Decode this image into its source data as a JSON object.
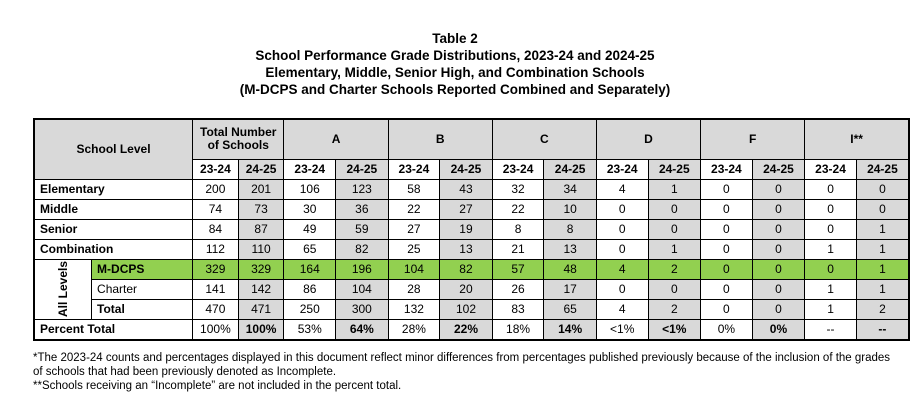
{
  "title": {
    "line1": "Table 2",
    "line2": "School Performance Grade Distributions, 2023-24 and 2024-25",
    "line3": "Elementary, Middle, Senior High, and Combination Schools",
    "line4": "(M-DCPS and Charter Schools Reported Combined and Separately)"
  },
  "headers": {
    "school_level": "School Level",
    "total_schools": "Total Number of Schools",
    "grades": [
      "A",
      "B",
      "C",
      "D",
      "F",
      "I**"
    ],
    "years": [
      "23-24",
      "24-25"
    ]
  },
  "rows": [
    {
      "label": "Elementary",
      "values": [
        "200",
        "201",
        "106",
        "123",
        "58",
        "43",
        "32",
        "34",
        "4",
        "1",
        "0",
        "0",
        "0",
        "0"
      ]
    },
    {
      "label": "Middle",
      "values": [
        "74",
        "73",
        "30",
        "36",
        "22",
        "27",
        "22",
        "10",
        "0",
        "0",
        "0",
        "0",
        "0",
        "0"
      ]
    },
    {
      "label": "Senior",
      "values": [
        "84",
        "87",
        "49",
        "59",
        "27",
        "19",
        "8",
        "8",
        "0",
        "0",
        "0",
        "0",
        "0",
        "1"
      ]
    },
    {
      "label": "Combination",
      "values": [
        "112",
        "110",
        "65",
        "82",
        "25",
        "13",
        "21",
        "13",
        "0",
        "1",
        "0",
        "0",
        "1",
        "1"
      ]
    }
  ],
  "all_levels": {
    "group_label": "All Levels",
    "rows": [
      {
        "label": "M-DCPS",
        "values": [
          "329",
          "329",
          "164",
          "196",
          "104",
          "82",
          "57",
          "48",
          "4",
          "2",
          "0",
          "0",
          "0",
          "1"
        ]
      },
      {
        "label": "Charter",
        "values": [
          "141",
          "142",
          "86",
          "104",
          "28",
          "20",
          "26",
          "17",
          "0",
          "0",
          "0",
          "0",
          "1",
          "1"
        ]
      },
      {
        "label": "Total",
        "values": [
          "470",
          "471",
          "250",
          "300",
          "132",
          "102",
          "83",
          "65",
          "4",
          "2",
          "0",
          "0",
          "1",
          "2"
        ]
      }
    ]
  },
  "percent_total": {
    "label": "Percent Total",
    "values": [
      "100%",
      "100%",
      "53%",
      "64%",
      "28%",
      "22%",
      "18%",
      "14%",
      "<1%",
      "<1%",
      "0%",
      "0%",
      "--",
      "--"
    ]
  },
  "notes": {
    "note1": "*The 2023-24 counts and percentages displayed in this document reflect minor differences from percentages published previously because of the inclusion of the grades of schools that had been previously denoted as Incomplete.",
    "note2": "**Schools receiving an “Incomplete” are not included in the percent total."
  },
  "colors": {
    "highlight": "#92d050",
    "header_shade": "#d9d9d9"
  }
}
